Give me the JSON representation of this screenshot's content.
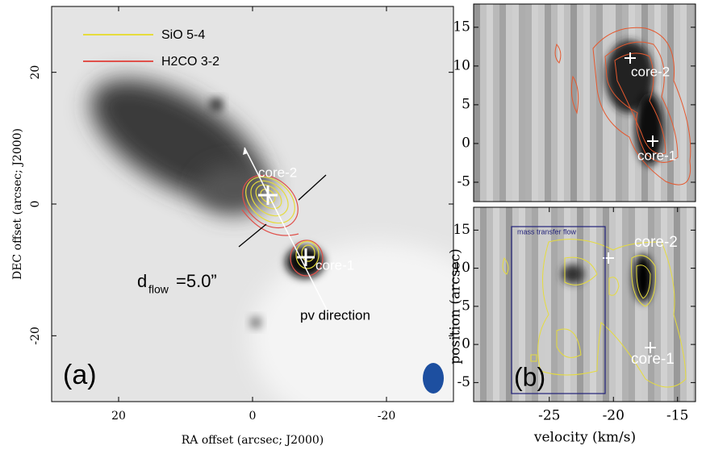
{
  "chart_data": [
    {
      "type": "image",
      "panel": "(a)",
      "xlabel": "RA offset (arcsec; J2000)",
      "ylabel": "DEC offset (arcsec; J2000)",
      "xlim": [
        30,
        -30
      ],
      "ylim": [
        -30,
        30
      ],
      "xticks": [
        20,
        0,
        -20
      ],
      "yticks": [
        -20,
        0,
        20
      ],
      "series": [
        {
          "name": "SiO 5-4",
          "color": "#e6dc3c"
        },
        {
          "name": "H2CO 3-2",
          "color": "#e0504a"
        }
      ],
      "annotations": [
        "core-2",
        "core-1",
        "pv direction",
        "d",
        "flow",
        "=5.0”"
      ]
    },
    {
      "type": "image",
      "xlim": [
        -30.9,
        -13.6
      ],
      "ylim": [
        -7.5,
        18
      ],
      "yticks": [
        -5,
        0,
        5,
        10,
        15
      ],
      "annotations": [
        "core-2",
        "core-1"
      ]
    },
    {
      "type": "image",
      "panel": "(b)",
      "xlabel": "velocity (km/s)",
      "ylabel": "position (arcsec)",
      "xlim": [
        -30.9,
        -13.6
      ],
      "ylim": [
        -7.5,
        18
      ],
      "xticks": [
        -25,
        -20,
        -15
      ],
      "yticks": [
        -5,
        0,
        5,
        10,
        15
      ],
      "annotations": [
        "mass transfer flow",
        "core-2",
        "core-1"
      ]
    }
  ]
}
